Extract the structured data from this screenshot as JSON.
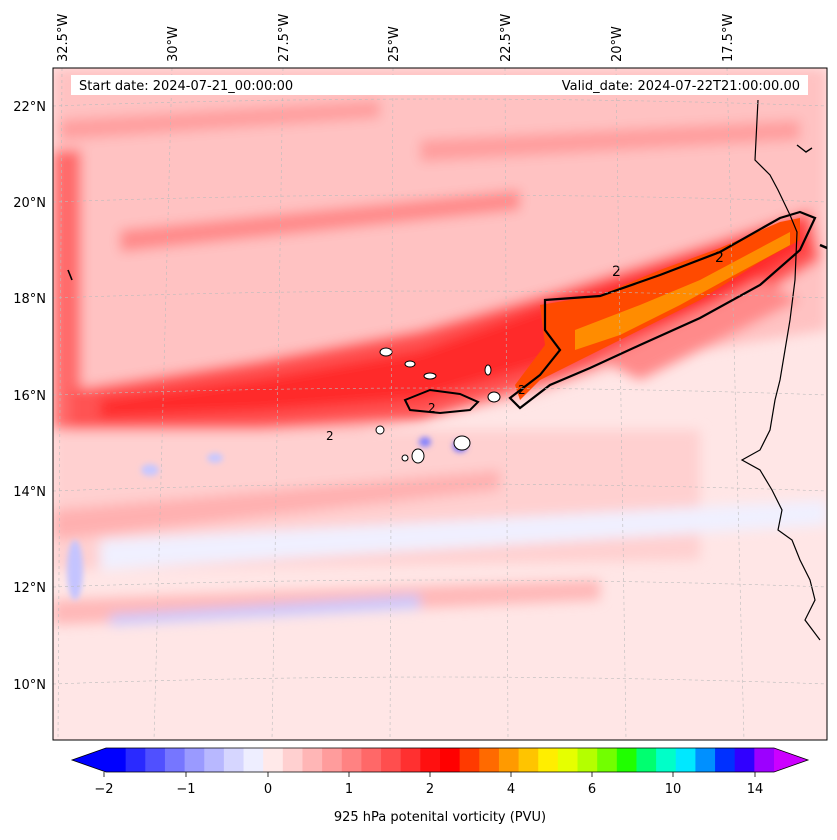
{
  "map": {
    "start_date": "Start date: 2024-07-21_00:00:00",
    "valid_date": "Valid_date: 2024-07-22T21:00:00.00",
    "lon_labels": [
      "32.5°W",
      "30°W",
      "27.5°W",
      "25°W",
      "22.5°W",
      "20°W",
      "17.5°W"
    ],
    "lat_labels": [
      "22°N",
      "20°N",
      "18°N",
      "16°N",
      "14°N",
      "12°N",
      "10°N"
    ],
    "contour_label": "2"
  },
  "colorbar": {
    "title": "925 hPa potenital vorticity (PVU)",
    "tick_labels": [
      "−2",
      "−1",
      "0",
      "1",
      "2",
      "4",
      "6",
      "10",
      "14"
    ],
    "colors": [
      "#0000ff",
      "#2a2aff",
      "#5050ff",
      "#7676ff",
      "#9a9aff",
      "#b8b8ff",
      "#d6d6ff",
      "#eeeeff",
      "#ffe9e9",
      "#ffd0d0",
      "#ffb6b6",
      "#ff9c9c",
      "#ff8282",
      "#ff6868",
      "#ff4e4e",
      "#ff3030",
      "#ff1010",
      "#ff0000",
      "#ff3a00",
      "#ff6a00",
      "#ff9a00",
      "#ffc400",
      "#ffee00",
      "#e6ff00",
      "#b4ff00",
      "#72ff00",
      "#20ff00",
      "#00ff70",
      "#00ffc8",
      "#00e8ff",
      "#0090ff",
      "#0030ff",
      "#3000ff",
      "#9c00ff"
    ],
    "extend_min_color": "#0000ff",
    "extend_max_color": "#cc00ff"
  }
}
